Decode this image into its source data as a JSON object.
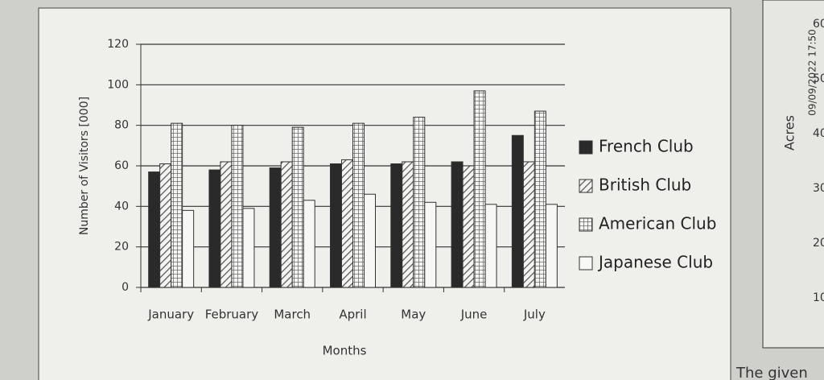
{
  "chart_data": {
    "type": "bar",
    "y_label": "Number of Visitors [000]",
    "x_label": "Months",
    "categories": [
      "January",
      "February",
      "March",
      "April",
      "May",
      "June",
      "July"
    ],
    "series": [
      {
        "name": "French Club",
        "color": "#2a2a2a",
        "pattern": "solid",
        "values": [
          57,
          58,
          59,
          61,
          61,
          62,
          75
        ]
      },
      {
        "name": "British Club",
        "color": "#555555",
        "pattern": "hatch",
        "values": [
          61,
          62,
          62,
          63,
          62,
          60,
          62
        ]
      },
      {
        "name": "American Club",
        "color": "#555555",
        "pattern": "grid",
        "values": [
          81,
          80,
          79,
          81,
          84,
          97,
          87
        ]
      },
      {
        "name": "Japanese Club",
        "color": "#555555",
        "pattern": "none",
        "values": [
          38,
          39,
          43,
          46,
          42,
          41,
          41
        ]
      }
    ],
    "ylim": [
      0,
      120
    ],
    "yticks": [
      0,
      20,
      40,
      60,
      80,
      100,
      120
    ],
    "grid": true,
    "legend": "right"
  },
  "page": {
    "side_label": "Acres",
    "side_ticks": [
      10,
      20,
      30,
      40,
      50,
      60
    ],
    "timestamp": "09/09/2022 17:50",
    "footer_text": "The given"
  }
}
